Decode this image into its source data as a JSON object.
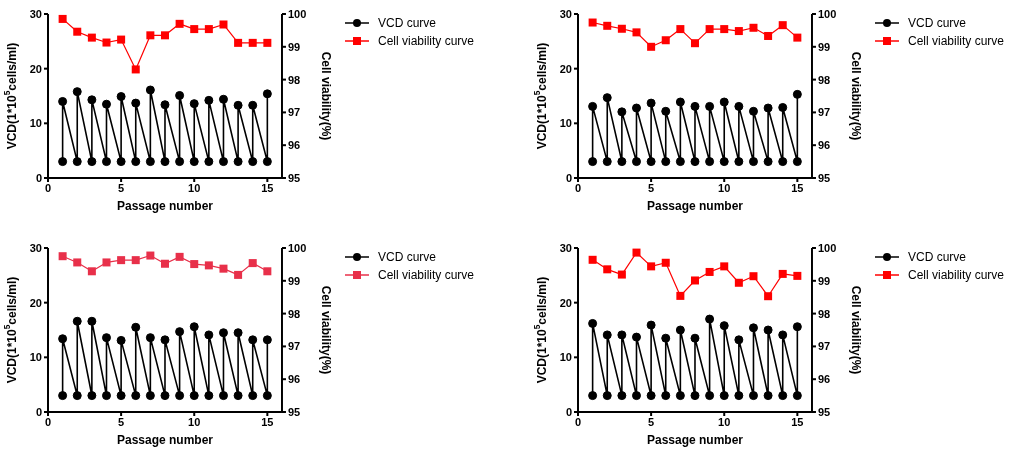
{
  "chart_data": [
    {
      "type": "line",
      "xlabel": "Passage number",
      "ylabel": "VCD(1*10$^{5}$cells/ml)",
      "y2label": "Cell viability(%)",
      "xlim": [
        0,
        16
      ],
      "xticks": [
        0,
        5,
        10,
        15
      ],
      "ylim": [
        0,
        30
      ],
      "yticks": [
        0,
        10,
        20,
        30
      ],
      "y2lim": [
        95,
        100
      ],
      "y2ticks": [
        95,
        96,
        97,
        98,
        99,
        100
      ],
      "legend": "top right",
      "grid": false,
      "series": [
        {
          "name": "VCD curve",
          "color": "#000000",
          "marker": "circle",
          "x": [
            1,
            1,
            2,
            2,
            3,
            3,
            4,
            4,
            5,
            5,
            6,
            6,
            7,
            7,
            8,
            8,
            9,
            9,
            10,
            10,
            11,
            11,
            12,
            12,
            13,
            13,
            14,
            14,
            15,
            15
          ],
          "values": [
            3,
            14.0,
            3,
            15.8,
            3,
            14.3,
            3,
            13.5,
            3,
            14.9,
            3,
            13.7,
            3,
            16.1,
            3,
            13.4,
            3,
            15.1,
            3,
            13.6,
            3,
            14.2,
            3,
            14.4,
            3,
            13.3,
            3,
            13.3,
            3,
            15.4
          ]
        },
        {
          "name": "Cell viability curve",
          "color": "#ff0000",
          "marker": "square",
          "axis": "y2",
          "x": [
            1,
            2,
            3,
            4,
            5,
            6,
            7,
            8,
            9,
            10,
            11,
            12,
            13,
            14,
            15
          ],
          "values": [
            99.85,
            99.46,
            99.28,
            99.13,
            99.22,
            98.31,
            99.35,
            99.35,
            99.7,
            99.54,
            99.54,
            99.68,
            99.12,
            99.12,
            99.12
          ]
        }
      ]
    },
    {
      "type": "line",
      "xlabel": "Passage number",
      "ylabel": "VCD(1*10$^{5}$cells/ml)",
      "y2label": "Cell viability(%)",
      "xlim": [
        0,
        16
      ],
      "xticks": [
        0,
        5,
        10,
        15
      ],
      "ylim": [
        0,
        30
      ],
      "yticks": [
        0,
        10,
        20,
        30
      ],
      "y2lim": [
        95,
        100
      ],
      "y2ticks": [
        95,
        96,
        97,
        98,
        99,
        100
      ],
      "legend": "top right",
      "grid": false,
      "series": [
        {
          "name": "VCD curve",
          "color": "#000000",
          "marker": "circle",
          "x": [
            1,
            1,
            2,
            2,
            3,
            3,
            4,
            4,
            5,
            5,
            6,
            6,
            7,
            7,
            8,
            8,
            9,
            9,
            10,
            10,
            11,
            11,
            12,
            12,
            13,
            13,
            14,
            14,
            15,
            15
          ],
          "values": [
            3,
            13.1,
            3,
            14.7,
            3,
            12.1,
            3,
            12.8,
            3,
            13.7,
            3,
            12.2,
            3,
            13.9,
            3,
            13.1,
            3,
            13.1,
            3,
            13.9,
            3,
            13.1,
            3,
            12.2,
            3,
            12.8,
            3,
            12.9,
            3,
            15.3
          ]
        },
        {
          "name": "Cell viability curve",
          "color": "#ff0000",
          "marker": "square",
          "axis": "y2",
          "x": [
            1,
            2,
            3,
            4,
            5,
            6,
            7,
            8,
            9,
            10,
            11,
            12,
            13,
            14,
            15
          ],
          "values": [
            99.74,
            99.64,
            99.55,
            99.44,
            99.0,
            99.2,
            99.54,
            99.11,
            99.54,
            99.54,
            99.48,
            99.58,
            99.33,
            99.66,
            99.28
          ]
        }
      ]
    },
    {
      "type": "line",
      "xlabel": "Passage number",
      "ylabel": "VCD(1*10$^{5}$cells/ml)",
      "y2label": "Cell viability(%)",
      "xlim": [
        0,
        16
      ],
      "xticks": [
        0,
        5,
        10,
        15
      ],
      "ylim": [
        0,
        30
      ],
      "yticks": [
        0,
        10,
        20,
        30
      ],
      "y2lim": [
        95,
        100
      ],
      "y2ticks": [
        95,
        96,
        97,
        98,
        99,
        100
      ],
      "legend": "top right",
      "grid": false,
      "series": [
        {
          "name": "VCD curve",
          "color": "#000000",
          "marker": "circle",
          "x": [
            1,
            1,
            2,
            2,
            3,
            3,
            4,
            4,
            5,
            5,
            6,
            6,
            7,
            7,
            8,
            8,
            9,
            9,
            10,
            10,
            11,
            11,
            12,
            12,
            13,
            13,
            14,
            14,
            15,
            15
          ],
          "values": [
            3,
            13.4,
            3,
            16.6,
            3,
            16.6,
            3,
            13.6,
            3,
            13.1,
            3,
            15.5,
            3,
            13.6,
            3,
            13.2,
            3,
            14.7,
            3,
            15.6,
            3,
            14.1,
            3,
            14.5,
            3,
            14.5,
            3,
            13.2,
            3,
            13.2
          ]
        },
        {
          "name": "Cell viability curve",
          "color": "#e8304a",
          "marker": "square",
          "axis": "y2",
          "x": [
            1,
            2,
            3,
            4,
            5,
            6,
            7,
            8,
            9,
            10,
            11,
            12,
            13,
            14,
            15
          ],
          "values": [
            99.75,
            99.56,
            99.29,
            99.56,
            99.63,
            99.63,
            99.77,
            99.52,
            99.73,
            99.51,
            99.47,
            99.37,
            99.18,
            99.54,
            99.29
          ]
        }
      ]
    },
    {
      "type": "line",
      "xlabel": "Passage number",
      "ylabel": "VCD(1*10$^{5}$cells/ml)",
      "y2label": "Cell viability(%)",
      "xlim": [
        0,
        16
      ],
      "xticks": [
        0,
        5,
        10,
        15
      ],
      "ylim": [
        0,
        30
      ],
      "yticks": [
        0,
        10,
        20,
        30
      ],
      "y2lim": [
        95,
        100
      ],
      "y2ticks": [
        95,
        96,
        97,
        98,
        99,
        100
      ],
      "legend": "top right",
      "grid": false,
      "series": [
        {
          "name": "VCD curve",
          "color": "#000000",
          "marker": "circle",
          "x": [
            1,
            1,
            2,
            2,
            3,
            3,
            4,
            4,
            5,
            5,
            6,
            6,
            7,
            7,
            8,
            8,
            9,
            9,
            10,
            10,
            11,
            11,
            12,
            12,
            13,
            13,
            14,
            14,
            15,
            15
          ],
          "values": [
            3,
            16.2,
            3,
            14.1,
            3,
            14.1,
            3,
            13.7,
            3,
            15.9,
            3,
            13.5,
            3,
            15.0,
            3,
            13.5,
            3,
            17.0,
            3,
            15.8,
            3,
            13.2,
            3,
            15.4,
            3,
            15.0,
            3,
            14.1,
            3,
            15.6
          ]
        },
        {
          "name": "Cell viability curve",
          "color": "#ff0000",
          "marker": "square",
          "axis": "y2",
          "x": [
            1,
            2,
            3,
            4,
            5,
            6,
            7,
            8,
            9,
            10,
            11,
            12,
            13,
            14,
            15
          ],
          "values": [
            99.64,
            99.35,
            99.19,
            99.86,
            99.44,
            99.55,
            98.54,
            99.01,
            99.27,
            99.44,
            98.94,
            99.14,
            98.53,
            99.21,
            99.15
          ]
        }
      ]
    }
  ]
}
